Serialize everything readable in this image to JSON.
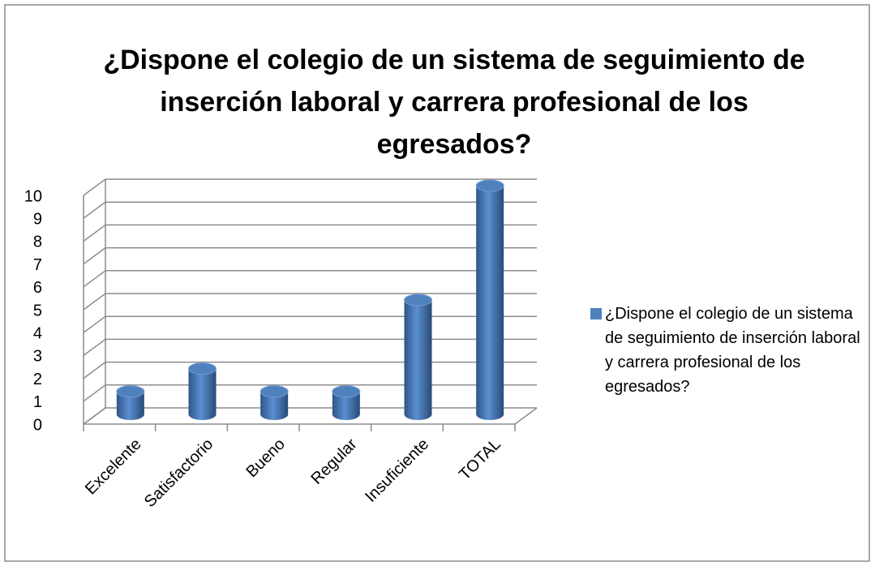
{
  "chart_data": {
    "type": "bar",
    "title": "¿Dispone el colegio de un sistema de seguimiento de inserción laboral y carrera profesional de los egresados?",
    "categories": [
      "Excelente",
      "Satisfactorio",
      "Bueno",
      "Regular",
      "Insuficiente",
      "TOTAL"
    ],
    "series": [
      {
        "name": "¿Dispone el colegio de un sistema de seguimiento de inserción laboral y carrera profesional de los egresados?",
        "color": "#4f81bd",
        "values": [
          1,
          2,
          1,
          1,
          5,
          10
        ]
      }
    ],
    "ylim": [
      0,
      10
    ],
    "yticks": [
      0,
      1,
      2,
      3,
      4,
      5,
      6,
      7,
      8,
      9,
      10
    ],
    "grid": true,
    "legend": "right"
  }
}
